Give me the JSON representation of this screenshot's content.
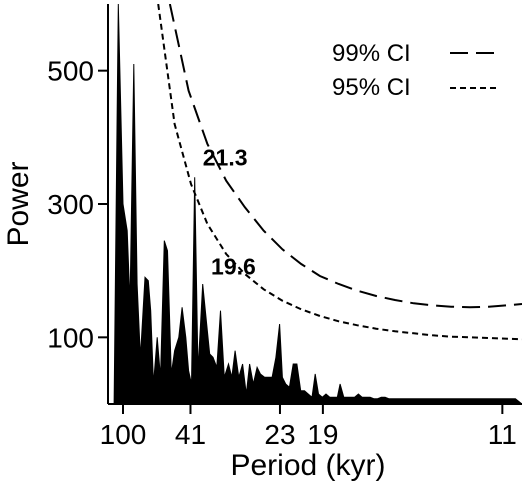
{
  "chart_data": {
    "type": "area",
    "title": "",
    "xlabel": "Period (kyr)",
    "ylabel": "Power",
    "frequency_range": [
      0.0068,
      0.0951
    ],
    "ylim": [
      0,
      600
    ],
    "x_ticks": [
      {
        "label": "100",
        "period": 100
      },
      {
        "label": "41",
        "period": 41
      },
      {
        "label": "23",
        "period": 23
      },
      {
        "label": "19",
        "period": 19
      },
      {
        "label": "11",
        "period": 11
      }
    ],
    "y_ticks": [
      {
        "label": "100",
        "value": 100
      },
      {
        "label": "300",
        "value": 300
      },
      {
        "label": "500",
        "value": 500
      }
    ],
    "series": [
      {
        "name": "",
        "style": "filled",
        "color": "#000000",
        "frequency": [
          0.0081,
          0.009,
          0.01,
          0.0109,
          0.0115,
          0.0123,
          0.013,
          0.0137,
          0.0147,
          0.0154,
          0.0159,
          0.0165,
          0.0173,
          0.018,
          0.0188,
          0.0195,
          0.0203,
          0.021,
          0.0219,
          0.0226,
          0.0234,
          0.024,
          0.0246,
          0.0253,
          0.026,
          0.027,
          0.0277,
          0.0285,
          0.0292,
          0.03,
          0.0308,
          0.0316,
          0.0325,
          0.0332,
          0.0339,
          0.0347,
          0.0355,
          0.0363,
          0.037,
          0.0378,
          0.0386,
          0.0393,
          0.0402,
          0.0409,
          0.0418,
          0.0426,
          0.0434,
          0.044,
          0.0447,
          0.0455,
          0.0463,
          0.0471,
          0.0479,
          0.0487,
          0.0495,
          0.0503,
          0.051,
          0.0517,
          0.0525,
          0.0533,
          0.0541,
          0.0549,
          0.0557,
          0.0563,
          0.0571,
          0.0579,
          0.0587,
          0.0594,
          0.0602,
          0.061,
          0.0619,
          0.0627,
          0.0635,
          0.0643,
          0.0651,
          0.0659,
          0.0667,
          0.0675,
          0.0683,
          0.0691,
          0.0699,
          0.0706,
          0.0714,
          0.0722,
          0.073,
          0.0738,
          0.0746,
          0.0754,
          0.0762,
          0.077,
          0.0778,
          0.0786,
          0.0794,
          0.0802,
          0.081,
          0.0818,
          0.0825,
          0.0833,
          0.0841,
          0.0849,
          0.0857,
          0.0865,
          0.0873,
          0.0881,
          0.0889,
          0.0897,
          0.0905,
          0.0913,
          0.0921,
          0.0929,
          0.0937,
          0.0951
        ],
        "power": [
          0,
          600,
          300,
          260,
          150,
          510,
          180,
          70,
          190,
          185,
          140,
          30,
          100,
          40,
          245,
          230,
          45,
          80,
          100,
          145,
          100,
          50,
          30,
          340,
          50,
          180,
          130,
          75,
          70,
          55,
          140,
          40,
          60,
          40,
          80,
          40,
          60,
          15,
          60,
          30,
          55,
          45,
          40,
          40,
          40,
          70,
          120,
          40,
          30,
          25,
          60,
          60,
          20,
          20,
          15,
          10,
          45,
          15,
          10,
          15,
          10,
          10,
          10,
          30,
          10,
          10,
          10,
          10,
          15,
          10,
          10,
          10,
          8,
          8,
          10,
          10,
          8,
          8,
          8,
          8,
          8,
          8,
          8,
          8,
          8,
          8,
          8,
          8,
          8,
          8,
          8,
          8,
          8,
          8,
          8,
          8,
          8,
          8,
          8,
          8,
          8,
          8,
          8,
          8,
          8,
          8,
          8,
          8,
          8,
          8,
          8,
          0
        ]
      },
      {
        "name": "99% CI",
        "style": "long-dash",
        "frequency": [
          0.02,
          0.024,
          0.028,
          0.032,
          0.036,
          0.04,
          0.044,
          0.048,
          0.052,
          0.056,
          0.06,
          0.064,
          0.068,
          0.072,
          0.076,
          0.08,
          0.084,
          0.088,
          0.092,
          0.0951
        ],
        "power": [
          600,
          470,
          390,
          335,
          295,
          260,
          232,
          210,
          192,
          180,
          170,
          162,
          156,
          151,
          148,
          146,
          145,
          146,
          148,
          150
        ]
      },
      {
        "name": "95% CI",
        "style": "short-dash",
        "frequency": [
          0.0175,
          0.021,
          0.0245,
          0.028,
          0.032,
          0.036,
          0.04,
          0.044,
          0.048,
          0.052,
          0.056,
          0.06,
          0.064,
          0.068,
          0.072,
          0.076,
          0.08,
          0.084,
          0.088,
          0.092,
          0.0951
        ],
        "power": [
          600,
          420,
          330,
          270,
          225,
          195,
          172,
          155,
          142,
          132,
          124,
          118,
          113,
          109,
          106,
          103,
          101,
          100,
          99,
          98,
          97
        ]
      }
    ],
    "annotations": [
      {
        "text": "21.3",
        "frequency": 0.0253,
        "power": 340
      },
      {
        "text": "19.6",
        "frequency": 0.0275,
        "power": 182
      }
    ],
    "legend": {
      "placement": "top-right"
    },
    "grid": false
  }
}
